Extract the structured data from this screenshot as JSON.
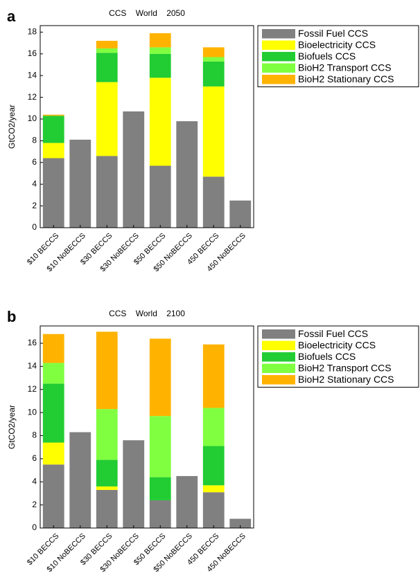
{
  "chart_data": [
    {
      "type": "stacked_bar",
      "panel_label": "a",
      "title": "CCS World 2050",
      "ylabel": "GtCO2/year",
      "categories": [
        "$10 BECCS",
        "$10 NoBECCS",
        "$30 BECCS",
        "$30 NoBECCS",
        "$50 BECCS",
        "$50 NoBECCS",
        "450 BECCS",
        "450 NoBECCS"
      ],
      "series": [
        {
          "name": "Fossil Fuel CCS",
          "color": "#808080",
          "values": [
            6.4,
            8.1,
            6.6,
            10.7,
            5.7,
            9.8,
            4.7,
            2.5
          ]
        },
        {
          "name": "Bioelectricity CCS",
          "color": "#ffff00",
          "values": [
            1.4,
            0,
            6.8,
            0,
            8.1,
            0,
            8.3,
            0
          ]
        },
        {
          "name": "Biofuels CCS",
          "color": "#22cc33",
          "values": [
            2.5,
            0,
            2.7,
            0,
            2.2,
            0,
            2.3,
            0
          ]
        },
        {
          "name": "BioH2 Transport CCS",
          "color": "#80ff40",
          "values": [
            0,
            0,
            0.4,
            0,
            0.6,
            0,
            0.4,
            0
          ]
        },
        {
          "name": "BioH2 Stationary CCS",
          "color": "#ffb300",
          "values": [
            0.1,
            0,
            0.7,
            0,
            1.3,
            0,
            0.9,
            0
          ]
        }
      ],
      "ylim": [
        0,
        18.6
      ],
      "yticks": [
        0,
        2,
        4,
        6,
        8,
        10,
        12,
        14,
        16,
        18
      ],
      "legend": "outside-right"
    },
    {
      "type": "stacked_bar",
      "panel_label": "b",
      "title": "CCS World 2100",
      "ylabel": "GtCO2/year",
      "categories": [
        "$10 BECCS",
        "$10 NoBECCS",
        "$30 BECCS",
        "$30 NoBECCS",
        "$50 BECCS",
        "$50 NoBECCS",
        "450 BECCS",
        "450 NoBECCS"
      ],
      "series": [
        {
          "name": "Fossil Fuel CCS",
          "color": "#808080",
          "values": [
            5.5,
            8.3,
            3.3,
            7.6,
            2.4,
            4.5,
            3.1,
            0.8
          ]
        },
        {
          "name": "Bioelectricity CCS",
          "color": "#ffff00",
          "values": [
            1.9,
            0,
            0.3,
            0,
            0,
            0,
            0.6,
            0
          ]
        },
        {
          "name": "Biofuels CCS",
          "color": "#22cc33",
          "values": [
            5.1,
            0,
            2.3,
            0,
            2.0,
            0,
            3.4,
            0
          ]
        },
        {
          "name": "BioH2 Transport CCS",
          "color": "#80ff40",
          "values": [
            1.8,
            0,
            4.4,
            0,
            5.3,
            0,
            3.3,
            0
          ]
        },
        {
          "name": "BioH2 Stationary CCS",
          "color": "#ffb300",
          "values": [
            2.5,
            0,
            6.7,
            0,
            6.7,
            0,
            5.5,
            0
          ]
        }
      ],
      "ylim": [
        0,
        17.5
      ],
      "yticks": [
        0,
        2,
        4,
        6,
        8,
        10,
        12,
        14,
        16
      ],
      "legend": "outside-right"
    }
  ]
}
